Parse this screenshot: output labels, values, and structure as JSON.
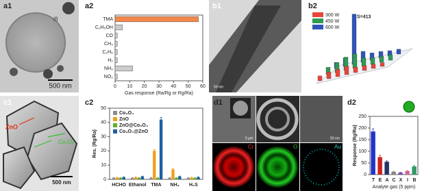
{
  "panel_labels": [
    "a1",
    "a2",
    "b1",
    "b2",
    "c1",
    "c2",
    "d1",
    "d2"
  ],
  "annotations": {
    "a1_scale": "500 nm",
    "a1_mark": "(f)",
    "b1_scale": "50 nm",
    "c1_zno": "ZnO",
    "c1_co3o4": "Co₃O₄",
    "c1_scale": "500 nm",
    "d1_scale1": "5 µm",
    "d1_scale2": "50 nm",
    "d1_cr": "Cr",
    "d1_o": "O",
    "d1_au": "Au"
  },
  "chart_data": [
    {
      "type": "bar",
      "orientation": "horizontal",
      "categories": [
        "TMA",
        "C₂H₅OH",
        "CO",
        "CH₄",
        "C₂H₆",
        "H₂",
        "NH₃",
        "NO₂"
      ],
      "values": [
        57,
        5,
        1.5,
        1.5,
        1.5,
        1.5,
        12,
        1.5
      ],
      "colors": [
        "#f5894a",
        "#cccccc",
        "#cccccc",
        "#cccccc",
        "#cccccc",
        "#cccccc",
        "#cccccc",
        "#cccccc"
      ],
      "xlim": [
        0,
        60
      ],
      "xticks": [
        0,
        10,
        20,
        30,
        40,
        50,
        60
      ],
      "xlabel": "Gas response (Ra/Rg or Rg/Ra)"
    },
    {
      "type": "bar3d",
      "categories": [
        null,
        null,
        null,
        null,
        null,
        null,
        null,
        null
      ],
      "series": [
        {
          "name": "300 W",
          "color": "#e8463a",
          "values": [
            40,
            55,
            60,
            70,
            45,
            40,
            35,
            30
          ]
        },
        {
          "name": "450 W",
          "color": "#2e9a52",
          "values": [
            60,
            80,
            110,
            120,
            70,
            55,
            50,
            45
          ]
        },
        {
          "name": "600 W",
          "color": "#2f55b8",
          "values": [
            50,
            70,
            413,
            90,
            60,
            55,
            45,
            40
          ]
        }
      ],
      "ylim": [
        0,
        450
      ],
      "annotation": "S=413",
      "legend": "upper left"
    },
    {
      "type": "bar",
      "categories": [
        "HCHO",
        "Ethanol",
        "TMA",
        "NH₃",
        "H₂S"
      ],
      "series": [
        {
          "name": "Co₃O₄",
          "color": "#8c8c8c",
          "values": [
            1,
            1,
            1,
            1,
            1
          ],
          "errors": [
            0.3,
            0.3,
            0.3,
            0.3,
            0.3
          ]
        },
        {
          "name": "ZnO",
          "color": "#f0a020",
          "values": [
            1.2,
            1.5,
            20,
            7,
            1.2
          ],
          "errors": [
            0.3,
            0.3,
            1,
            0.5,
            0.3
          ]
        },
        {
          "name": "ZnO@Co₃O₄",
          "color": "#5cb030",
          "values": [
            1,
            1,
            1,
            1,
            1
          ],
          "errors": [
            0.3,
            0.3,
            0.3,
            0.3,
            0.3
          ]
        },
        {
          "name": "Co₃O₄@ZnO",
          "color": "#1f5fa0",
          "values": [
            1.5,
            2,
            42,
            2,
            1.5
          ],
          "errors": [
            0.3,
            0.3,
            1.5,
            0.3,
            0.3
          ]
        }
      ],
      "ylim": [
        0,
        50
      ],
      "yticks": [
        0,
        10,
        20,
        30,
        40,
        50
      ],
      "ylabel": "Res. (Rg/Ra)",
      "legend": "upper left"
    },
    {
      "type": "bar",
      "categories": [
        "T",
        "E",
        "A",
        "C",
        "X",
        "I",
        "B"
      ],
      "values": [
        185,
        75,
        55,
        12,
        8,
        15,
        35
      ],
      "errors": [
        12,
        8,
        4,
        2,
        2,
        2,
        4
      ],
      "colors": [
        "#2233cc",
        "#cc2222",
        "#223366",
        "#888888",
        "#7744aa",
        "#cc6699",
        "#339966"
      ],
      "ylim": [
        0,
        250
      ],
      "yticks": [
        0,
        50,
        100,
        150,
        200,
        250
      ],
      "ylabel": "Response (Rg/Ra)",
      "xlabel": "Analyte gas (5 ppm)"
    }
  ]
}
